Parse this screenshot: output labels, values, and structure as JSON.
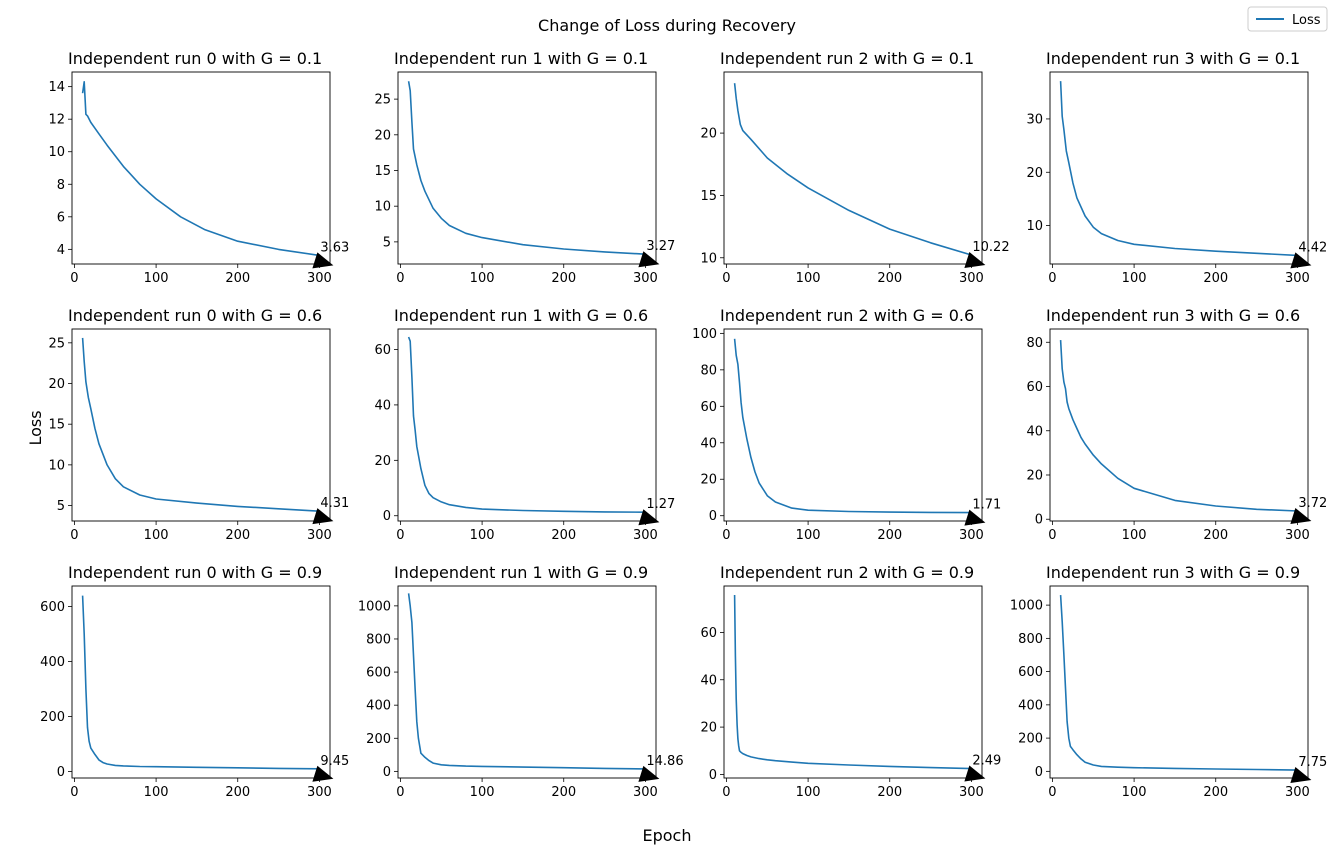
{
  "figure": {
    "suptitle": "Change of Loss during Recovery",
    "xlabel": "Epoch",
    "ylabel": "Loss",
    "legend": {
      "label": "Loss",
      "color": "#1f77b4",
      "placement": "top-right"
    }
  },
  "chart_data": [
    {
      "type": "line",
      "title": "Independent run 0 with G = 0.1",
      "xlim": [
        -3,
        313
      ],
      "ylim": [
        3.1,
        14.9
      ],
      "xticks": [
        0,
        100,
        200,
        300
      ],
      "yticks": [
        4,
        6,
        8,
        10,
        12,
        14
      ],
      "x": [
        10,
        12,
        14,
        16,
        20,
        30,
        40,
        60,
        80,
        100,
        130,
        160,
        200,
        250,
        300
      ],
      "y": [
        13.6,
        14.3,
        12.3,
        12.2,
        11.8,
        11.1,
        10.4,
        9.1,
        8.0,
        7.1,
        6.0,
        5.2,
        4.5,
        4.0,
        3.63
      ],
      "annotation": "3.63"
    },
    {
      "type": "line",
      "title": "Independent run 1 with G = 0.1",
      "xlim": [
        -3,
        313
      ],
      "ylim": [
        1.9,
        28.8
      ],
      "xticks": [
        0,
        100,
        200,
        300
      ],
      "yticks": [
        5,
        10,
        15,
        20,
        25
      ],
      "x": [
        10,
        12,
        14,
        16,
        20,
        25,
        30,
        40,
        50,
        60,
        80,
        100,
        150,
        200,
        250,
        300
      ],
      "y": [
        27.5,
        26.2,
        21.8,
        18.0,
        15.8,
        13.6,
        12.1,
        9.7,
        8.3,
        7.3,
        6.2,
        5.6,
        4.6,
        4.0,
        3.6,
        3.27
      ],
      "annotation": "3.27"
    },
    {
      "type": "line",
      "title": "Independent run 2 with G = 0.1",
      "xlim": [
        -3,
        313
      ],
      "ylim": [
        9.5,
        24.9
      ],
      "xticks": [
        0,
        100,
        200,
        300
      ],
      "yticks": [
        10,
        15,
        20
      ],
      "x": [
        10,
        12,
        14,
        17,
        20,
        30,
        50,
        75,
        100,
        150,
        200,
        250,
        300
      ],
      "y": [
        24.0,
        22.8,
        21.8,
        20.7,
        20.2,
        19.5,
        18.0,
        16.7,
        15.6,
        13.8,
        12.3,
        11.2,
        10.22
      ],
      "annotation": "10.22"
    },
    {
      "type": "line",
      "title": "Independent run 3 with G = 0.1",
      "xlim": [
        -3,
        313
      ],
      "ylim": [
        2.8,
        38.8
      ],
      "xticks": [
        0,
        100,
        200,
        300
      ],
      "yticks": [
        10,
        20,
        30
      ],
      "x": [
        10,
        12,
        14,
        17,
        20,
        25,
        30,
        40,
        50,
        60,
        80,
        100,
        150,
        200,
        250,
        300
      ],
      "y": [
        37.1,
        30.5,
        28.0,
        24.0,
        21.8,
        18.0,
        15.2,
        11.8,
        9.7,
        8.5,
        7.2,
        6.5,
        5.7,
        5.2,
        4.8,
        4.42
      ],
      "annotation": "4.42"
    },
    {
      "type": "line",
      "title": "Independent run 0 with G = 0.6",
      "xlim": [
        -3,
        313
      ],
      "ylim": [
        3.1,
        26.7
      ],
      "xticks": [
        0,
        100,
        200,
        300
      ],
      "yticks": [
        5,
        10,
        15,
        20,
        25
      ],
      "x": [
        10,
        12,
        14,
        17,
        20,
        25,
        30,
        40,
        50,
        60,
        80,
        100,
        150,
        200,
        250,
        300
      ],
      "y": [
        25.6,
        22.7,
        20.2,
        18.3,
        16.9,
        14.5,
        12.6,
        10.0,
        8.3,
        7.3,
        6.3,
        5.8,
        5.3,
        4.9,
        4.6,
        4.31
      ],
      "annotation": "4.31"
    },
    {
      "type": "line",
      "title": "Independent run 1 with G = 0.6",
      "xlim": [
        -3,
        313
      ],
      "ylim": [
        -1.9,
        67.4
      ],
      "xticks": [
        0,
        100,
        200,
        300
      ],
      "yticks": [
        0,
        20,
        40,
        60
      ],
      "x": [
        10,
        12,
        14,
        16,
        18,
        20,
        25,
        30,
        35,
        40,
        50,
        60,
        80,
        100,
        150,
        200,
        250,
        300
      ],
      "y": [
        64.5,
        63.0,
        50.0,
        36.0,
        31.0,
        25.0,
        17.0,
        11.0,
        8.0,
        6.5,
        5.0,
        4.0,
        3.0,
        2.4,
        1.9,
        1.6,
        1.4,
        1.27
      ],
      "annotation": "1.27"
    },
    {
      "type": "line",
      "title": "Independent run 2 with G = 0.6",
      "xlim": [
        -3,
        313
      ],
      "ylim": [
        -2.9,
        102.4
      ],
      "xticks": [
        0,
        100,
        200,
        300
      ],
      "yticks": [
        0,
        20,
        40,
        60,
        80,
        100
      ],
      "x": [
        10,
        12,
        14,
        16,
        18,
        20,
        25,
        30,
        35,
        40,
        50,
        60,
        80,
        100,
        150,
        200,
        250,
        300
      ],
      "y": [
        97.0,
        88.0,
        83.0,
        73.0,
        62.0,
        54.0,
        42.0,
        32.0,
        24.0,
        18.0,
        11.0,
        7.5,
        4.2,
        3.0,
        2.3,
        2.0,
        1.8,
        1.71
      ],
      "annotation": "1.71"
    },
    {
      "type": "line",
      "title": "Independent run 3 with G = 0.6",
      "xlim": [
        -3,
        313
      ],
      "ylim": [
        -0.8,
        86.0
      ],
      "xticks": [
        0,
        100,
        200,
        300
      ],
      "yticks": [
        0,
        20,
        40,
        60,
        80
      ],
      "x": [
        10,
        12,
        14,
        16,
        18,
        20,
        25,
        30,
        35,
        40,
        50,
        60,
        80,
        100,
        150,
        200,
        250,
        300
      ],
      "y": [
        81.0,
        68.0,
        62.0,
        59.0,
        53.0,
        50.0,
        45.0,
        41.0,
        37.0,
        34.0,
        29.0,
        25.0,
        18.5,
        14.0,
        8.5,
        6.0,
        4.5,
        3.72
      ],
      "annotation": "3.72"
    },
    {
      "type": "line",
      "title": "Independent run 0 with G = 0.9",
      "xlim": [
        -3,
        313
      ],
      "ylim": [
        -24,
        675
      ],
      "xticks": [
        0,
        100,
        200,
        300
      ],
      "yticks": [
        0,
        200,
        400,
        600
      ],
      "x": [
        10,
        12,
        14,
        16,
        18,
        20,
        25,
        30,
        35,
        40,
        50,
        60,
        80,
        100,
        150,
        200,
        250,
        300
      ],
      "y": [
        640,
        500,
        300,
        160,
        110,
        85,
        62,
        42,
        32,
        27,
        22,
        20,
        18,
        17,
        15,
        13,
        11,
        9.45
      ],
      "annotation": "9.45"
    },
    {
      "type": "line",
      "title": "Independent run 1 with G = 0.9",
      "xlim": [
        -3,
        313
      ],
      "ylim": [
        -40,
        1120
      ],
      "xticks": [
        0,
        100,
        200,
        300
      ],
      "yticks": [
        0,
        200,
        400,
        600,
        800,
        1000
      ],
      "x": [
        10,
        12,
        14,
        16,
        18,
        20,
        22,
        25,
        30,
        35,
        40,
        50,
        60,
        80,
        100,
        150,
        200,
        250,
        300
      ],
      "y": [
        1075,
        1000,
        900,
        700,
        500,
        300,
        200,
        110,
        85,
        65,
        50,
        40,
        36,
        32,
        30,
        26,
        22,
        18,
        14.86
      ],
      "annotation": "14.86"
    },
    {
      "type": "line",
      "title": "Independent run 2 with G = 0.9",
      "xlim": [
        -3,
        313
      ],
      "ylim": [
        -1.5,
        79.6
      ],
      "xticks": [
        0,
        100,
        200,
        300
      ],
      "yticks": [
        0,
        20,
        40,
        60
      ],
      "x": [
        10,
        11,
        12,
        13,
        14,
        15,
        16,
        18,
        20,
        25,
        30,
        40,
        50,
        60,
        80,
        100,
        150,
        200,
        250,
        300
      ],
      "y": [
        75.8,
        50.0,
        32.0,
        21.0,
        15.0,
        12.0,
        10.0,
        9.3,
        8.8,
        8.0,
        7.4,
        6.7,
        6.2,
        5.8,
        5.2,
        4.7,
        4.0,
        3.4,
        2.9,
        2.49
      ],
      "annotation": "2.49"
    },
    {
      "type": "line",
      "title": "Independent run 3 with G = 0.9",
      "xlim": [
        -3,
        313
      ],
      "ylim": [
        -40,
        1115
      ],
      "xticks": [
        0,
        100,
        200,
        300
      ],
      "yticks": [
        0,
        200,
        400,
        600,
        800,
        1000
      ],
      "x": [
        10,
        12,
        14,
        16,
        18,
        20,
        22,
        25,
        30,
        35,
        40,
        50,
        60,
        80,
        100,
        150,
        200,
        250,
        300
      ],
      "y": [
        1060,
        900,
        700,
        500,
        300,
        200,
        150,
        130,
        100,
        75,
        55,
        38,
        30,
        25,
        22,
        18,
        14,
        11,
        7.75
      ],
      "annotation": "7.75"
    }
  ]
}
